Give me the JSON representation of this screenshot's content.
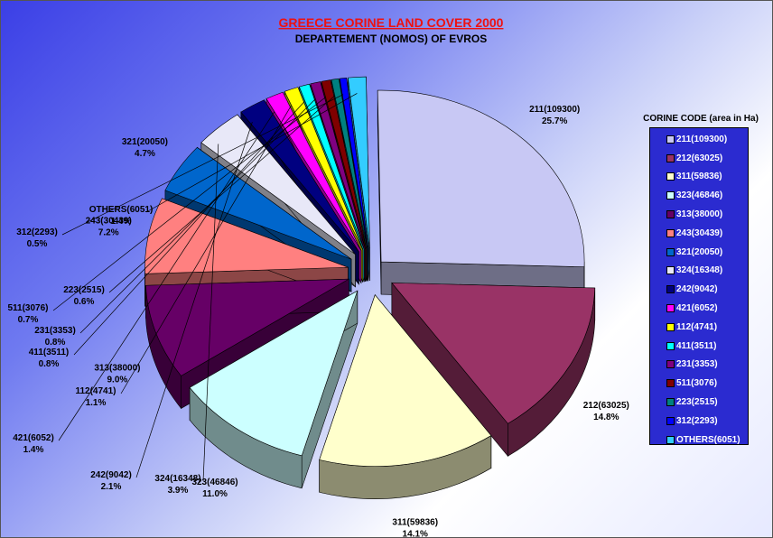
{
  "chart_data": {
    "type": "pie",
    "title": "GREECE CORINE LAND COVER 2000",
    "subtitle": "DEPARTEMENT (NOMOS) OF EVROS",
    "legend_title": "CORINE CODE (area in Ha)",
    "legend_position": "right",
    "slices": [
      {
        "name": "211(109300)",
        "value": 109300,
        "percent": "25.7%",
        "color": "#c8c8f4"
      },
      {
        "name": "212(63025)",
        "value": 63025,
        "percent": "14.8%",
        "color": "#993366"
      },
      {
        "name": "311(59836)",
        "value": 59836,
        "percent": "14.1%",
        "color": "#ffffcc"
      },
      {
        "name": "323(46846)",
        "value": 46846,
        "percent": "11.0%",
        "color": "#ccffff"
      },
      {
        "name": "313(38000)",
        "value": 38000,
        "percent": "9.0%",
        "color": "#660066"
      },
      {
        "name": "243(30439)",
        "value": 30439,
        "percent": "7.2%",
        "color": "#ff8080"
      },
      {
        "name": "321(20050)",
        "value": 20050,
        "percent": "4.7%",
        "color": "#0066cc"
      },
      {
        "name": "324(16348)",
        "value": 16348,
        "percent": "3.9%",
        "color": "#e8e8f8"
      },
      {
        "name": "242(9042)",
        "value": 9042,
        "percent": "2.1%",
        "color": "#000080"
      },
      {
        "name": "421(6052)",
        "value": 6052,
        "percent": "1.4%",
        "color": "#ff00ff"
      },
      {
        "name": "112(4741)",
        "value": 4741,
        "percent": "1.1%",
        "color": "#ffff00"
      },
      {
        "name": "411(3511)",
        "value": 3511,
        "percent": "0.8%",
        "color": "#00ffff"
      },
      {
        "name": "231(3353)",
        "value": 3353,
        "percent": "0.8%",
        "color": "#800080"
      },
      {
        "name": "511(3076)",
        "value": 3076,
        "percent": "0.7%",
        "color": "#800000"
      },
      {
        "name": "223(2515)",
        "value": 2515,
        "percent": "0.6%",
        "color": "#008080"
      },
      {
        "name": "312(2293)",
        "value": 2293,
        "percent": "0.5%",
        "color": "#0000ff"
      },
      {
        "name": "OTHERS(6051)",
        "value": 6051,
        "percent": "1.4%",
        "color": "#33ccff"
      }
    ]
  }
}
